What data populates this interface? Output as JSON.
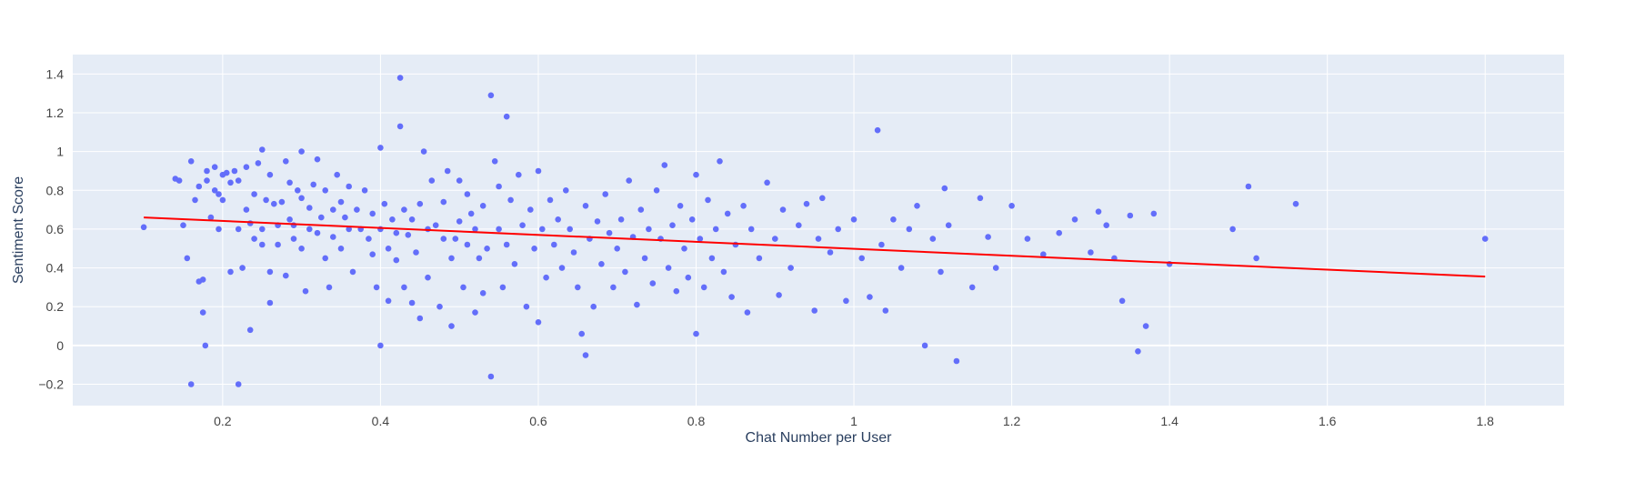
{
  "chart_data": {
    "type": "scatter",
    "title": "",
    "xlabel": "Chat Number per User",
    "ylabel": "Sentiment Score",
    "xlim": [
      0.01,
      1.9
    ],
    "ylim": [
      -0.31,
      1.5
    ],
    "xticks": [
      0.2,
      0.4,
      0.6,
      0.8,
      1,
      1.2,
      1.4,
      1.6,
      1.8
    ],
    "yticks": [
      -0.2,
      0,
      0.2,
      0.4,
      0.6,
      0.8,
      1,
      1.2,
      1.4
    ],
    "x_tick_labels": [
      "0.2",
      "0.4",
      "0.6",
      "0.8",
      "1",
      "1.2",
      "1.4",
      "1.6",
      "1.8"
    ],
    "y_tick_labels": [
      "−0.2",
      "0",
      "0.2",
      "0.4",
      "0.6",
      "0.8",
      "1",
      "1.2",
      "1.4"
    ],
    "grid": true,
    "legend": "none",
    "colors": {
      "plot_background": "#e5ecf6",
      "grid": "#ffffff",
      "points": "#636efa",
      "trendline": "#ff0000"
    },
    "series": [
      {
        "mode": "markers",
        "points": [
          [
            0.1,
            0.61
          ],
          [
            0.14,
            0.86
          ],
          [
            0.145,
            0.85
          ],
          [
            0.15,
            0.62
          ],
          [
            0.155,
            0.45
          ],
          [
            0.16,
            0.95
          ],
          [
            0.16,
            -0.2
          ],
          [
            0.165,
            0.75
          ],
          [
            0.17,
            0.82
          ],
          [
            0.17,
            0.33
          ],
          [
            0.175,
            0.34
          ],
          [
            0.175,
            0.17
          ],
          [
            0.178,
            0.0
          ],
          [
            0.18,
            0.9
          ],
          [
            0.18,
            0.85
          ],
          [
            0.185,
            0.66
          ],
          [
            0.19,
            0.92
          ],
          [
            0.19,
            0.8
          ],
          [
            0.195,
            0.78
          ],
          [
            0.195,
            0.6
          ],
          [
            0.2,
            0.88
          ],
          [
            0.2,
            0.75
          ],
          [
            0.205,
            0.89
          ],
          [
            0.21,
            0.84
          ],
          [
            0.21,
            0.38
          ],
          [
            0.215,
            0.9
          ],
          [
            0.22,
            0.85
          ],
          [
            0.22,
            0.6
          ],
          [
            0.22,
            -0.2
          ],
          [
            0.225,
            0.4
          ],
          [
            0.23,
            0.92
          ],
          [
            0.23,
            0.7
          ],
          [
            0.235,
            0.63
          ],
          [
            0.235,
            0.08
          ],
          [
            0.24,
            0.78
          ],
          [
            0.24,
            0.55
          ],
          [
            0.245,
            0.94
          ],
          [
            0.25,
            1.01
          ],
          [
            0.25,
            0.6
          ],
          [
            0.25,
            0.52
          ],
          [
            0.255,
            0.75
          ],
          [
            0.26,
            0.88
          ],
          [
            0.26,
            0.38
          ],
          [
            0.26,
            0.22
          ],
          [
            0.265,
            0.73
          ],
          [
            0.27,
            0.62
          ],
          [
            0.27,
            0.52
          ],
          [
            0.275,
            0.74
          ],
          [
            0.28,
            0.95
          ],
          [
            0.28,
            0.36
          ],
          [
            0.285,
            0.84
          ],
          [
            0.285,
            0.65
          ],
          [
            0.29,
            0.55
          ],
          [
            0.29,
            0.62
          ],
          [
            0.295,
            0.8
          ],
          [
            0.3,
            0.76
          ],
          [
            0.3,
            1.0
          ],
          [
            0.3,
            0.5
          ],
          [
            0.305,
            0.28
          ],
          [
            0.31,
            0.71
          ],
          [
            0.31,
            0.6
          ],
          [
            0.315,
            0.83
          ],
          [
            0.32,
            0.58
          ],
          [
            0.32,
            0.96
          ],
          [
            0.325,
            0.66
          ],
          [
            0.33,
            0.8
          ],
          [
            0.33,
            0.45
          ],
          [
            0.335,
            0.3
          ],
          [
            0.34,
            0.7
          ],
          [
            0.34,
            0.56
          ],
          [
            0.345,
            0.88
          ],
          [
            0.35,
            0.5
          ],
          [
            0.35,
            0.74
          ],
          [
            0.355,
            0.66
          ],
          [
            0.36,
            0.82
          ],
          [
            0.36,
            0.6
          ],
          [
            0.365,
            0.38
          ],
          [
            0.37,
            0.7
          ],
          [
            0.375,
            0.6
          ],
          [
            0.38,
            0.8
          ],
          [
            0.385,
            0.55
          ],
          [
            0.39,
            0.68
          ],
          [
            0.39,
            0.47
          ],
          [
            0.395,
            0.3
          ],
          [
            0.4,
            1.02
          ],
          [
            0.4,
            0.0
          ],
          [
            0.4,
            0.6
          ],
          [
            0.405,
            0.73
          ],
          [
            0.41,
            0.23
          ],
          [
            0.41,
            0.5
          ],
          [
            0.415,
            0.65
          ],
          [
            0.42,
            0.58
          ],
          [
            0.42,
            0.44
          ],
          [
            0.425,
            1.38
          ],
          [
            0.425,
            1.13
          ],
          [
            0.43,
            0.7
          ],
          [
            0.43,
            0.3
          ],
          [
            0.435,
            0.57
          ],
          [
            0.44,
            0.22
          ],
          [
            0.44,
            0.65
          ],
          [
            0.445,
            0.48
          ],
          [
            0.45,
            0.14
          ],
          [
            0.45,
            0.73
          ],
          [
            0.455,
            1.0
          ],
          [
            0.46,
            0.6
          ],
          [
            0.46,
            0.35
          ],
          [
            0.465,
            0.85
          ],
          [
            0.47,
            0.62
          ],
          [
            0.475,
            0.2
          ],
          [
            0.48,
            0.74
          ],
          [
            0.48,
            0.55
          ],
          [
            0.485,
            0.9
          ],
          [
            0.49,
            0.45
          ],
          [
            0.49,
            0.1
          ],
          [
            0.495,
            0.55
          ],
          [
            0.5,
            0.85
          ],
          [
            0.5,
            0.64
          ],
          [
            0.505,
            0.3
          ],
          [
            0.51,
            0.78
          ],
          [
            0.51,
            0.52
          ],
          [
            0.515,
            0.68
          ],
          [
            0.52,
            0.17
          ],
          [
            0.52,
            0.6
          ],
          [
            0.525,
            0.45
          ],
          [
            0.53,
            0.27
          ],
          [
            0.53,
            0.72
          ],
          [
            0.535,
            0.5
          ],
          [
            0.54,
            1.29
          ],
          [
            0.54,
            -0.16
          ],
          [
            0.545,
            0.95
          ],
          [
            0.55,
            0.82
          ],
          [
            0.55,
            0.6
          ],
          [
            0.555,
            0.3
          ],
          [
            0.56,
            1.18
          ],
          [
            0.56,
            0.52
          ],
          [
            0.565,
            0.75
          ],
          [
            0.57,
            0.42
          ],
          [
            0.575,
            0.88
          ],
          [
            0.58,
            0.62
          ],
          [
            0.585,
            0.2
          ],
          [
            0.59,
            0.7
          ],
          [
            0.595,
            0.5
          ],
          [
            0.6,
            0.9
          ],
          [
            0.6,
            0.12
          ],
          [
            0.605,
            0.6
          ],
          [
            0.61,
            0.35
          ],
          [
            0.615,
            0.75
          ],
          [
            0.62,
            0.52
          ],
          [
            0.625,
            0.65
          ],
          [
            0.63,
            0.4
          ],
          [
            0.635,
            0.8
          ],
          [
            0.64,
            0.6
          ],
          [
            0.645,
            0.48
          ],
          [
            0.65,
            0.3
          ],
          [
            0.655,
            0.06
          ],
          [
            0.66,
            -0.05
          ],
          [
            0.66,
            0.72
          ],
          [
            0.665,
            0.55
          ],
          [
            0.67,
            0.2
          ],
          [
            0.675,
            0.64
          ],
          [
            0.68,
            0.42
          ],
          [
            0.685,
            0.78
          ],
          [
            0.69,
            0.58
          ],
          [
            0.695,
            0.3
          ],
          [
            0.7,
            0.5
          ],
          [
            0.705,
            0.65
          ],
          [
            0.71,
            0.38
          ],
          [
            0.715,
            0.85
          ],
          [
            0.72,
            0.56
          ],
          [
            0.725,
            0.21
          ],
          [
            0.73,
            0.7
          ],
          [
            0.735,
            0.45
          ],
          [
            0.74,
            0.6
          ],
          [
            0.745,
            0.32
          ],
          [
            0.75,
            0.8
          ],
          [
            0.755,
            0.55
          ],
          [
            0.76,
            0.93
          ],
          [
            0.765,
            0.4
          ],
          [
            0.77,
            0.62
          ],
          [
            0.775,
            0.28
          ],
          [
            0.78,
            0.72
          ],
          [
            0.785,
            0.5
          ],
          [
            0.79,
            0.35
          ],
          [
            0.795,
            0.65
          ],
          [
            0.8,
            0.88
          ],
          [
            0.8,
            0.06
          ],
          [
            0.805,
            0.55
          ],
          [
            0.81,
            0.3
          ],
          [
            0.815,
            0.75
          ],
          [
            0.82,
            0.45
          ],
          [
            0.825,
            0.6
          ],
          [
            0.83,
            0.95
          ],
          [
            0.835,
            0.38
          ],
          [
            0.84,
            0.68
          ],
          [
            0.845,
            0.25
          ],
          [
            0.85,
            0.52
          ],
          [
            0.86,
            0.72
          ],
          [
            0.865,
            0.17
          ],
          [
            0.87,
            0.6
          ],
          [
            0.88,
            0.45
          ],
          [
            0.89,
            0.84
          ],
          [
            0.9,
            0.55
          ],
          [
            0.905,
            0.26
          ],
          [
            0.91,
            0.7
          ],
          [
            0.92,
            0.4
          ],
          [
            0.93,
            0.62
          ],
          [
            0.94,
            0.73
          ],
          [
            0.95,
            0.18
          ],
          [
            0.955,
            0.55
          ],
          [
            0.96,
            0.76
          ],
          [
            0.97,
            0.48
          ],
          [
            0.98,
            0.6
          ],
          [
            0.99,
            0.23
          ],
          [
            1.0,
            0.65
          ],
          [
            1.01,
            0.45
          ],
          [
            1.02,
            0.25
          ],
          [
            1.03,
            1.11
          ],
          [
            1.035,
            0.52
          ],
          [
            1.04,
            0.18
          ],
          [
            1.05,
            0.65
          ],
          [
            1.06,
            0.4
          ],
          [
            1.07,
            0.6
          ],
          [
            1.08,
            0.72
          ],
          [
            1.09,
            0.0
          ],
          [
            1.1,
            0.55
          ],
          [
            1.11,
            0.38
          ],
          [
            1.115,
            0.81
          ],
          [
            1.12,
            0.62
          ],
          [
            1.13,
            -0.08
          ],
          [
            1.15,
            0.3
          ],
          [
            1.16,
            0.76
          ],
          [
            1.17,
            0.56
          ],
          [
            1.18,
            0.4
          ],
          [
            1.2,
            0.72
          ],
          [
            1.22,
            0.55
          ],
          [
            1.24,
            0.47
          ],
          [
            1.26,
            0.58
          ],
          [
            1.28,
            0.65
          ],
          [
            1.3,
            0.48
          ],
          [
            1.31,
            0.69
          ],
          [
            1.32,
            0.62
          ],
          [
            1.33,
            0.45
          ],
          [
            1.34,
            0.23
          ],
          [
            1.35,
            0.67
          ],
          [
            1.36,
            -0.03
          ],
          [
            1.37,
            0.1
          ],
          [
            1.38,
            0.68
          ],
          [
            1.4,
            0.42
          ],
          [
            1.48,
            0.6
          ],
          [
            1.5,
            0.82
          ],
          [
            1.51,
            0.45
          ],
          [
            1.56,
            0.73
          ],
          [
            1.8,
            0.55
          ]
        ]
      },
      {
        "mode": "lines",
        "points": [
          [
            0.1,
            0.66
          ],
          [
            1.8,
            0.355
          ]
        ]
      }
    ]
  }
}
